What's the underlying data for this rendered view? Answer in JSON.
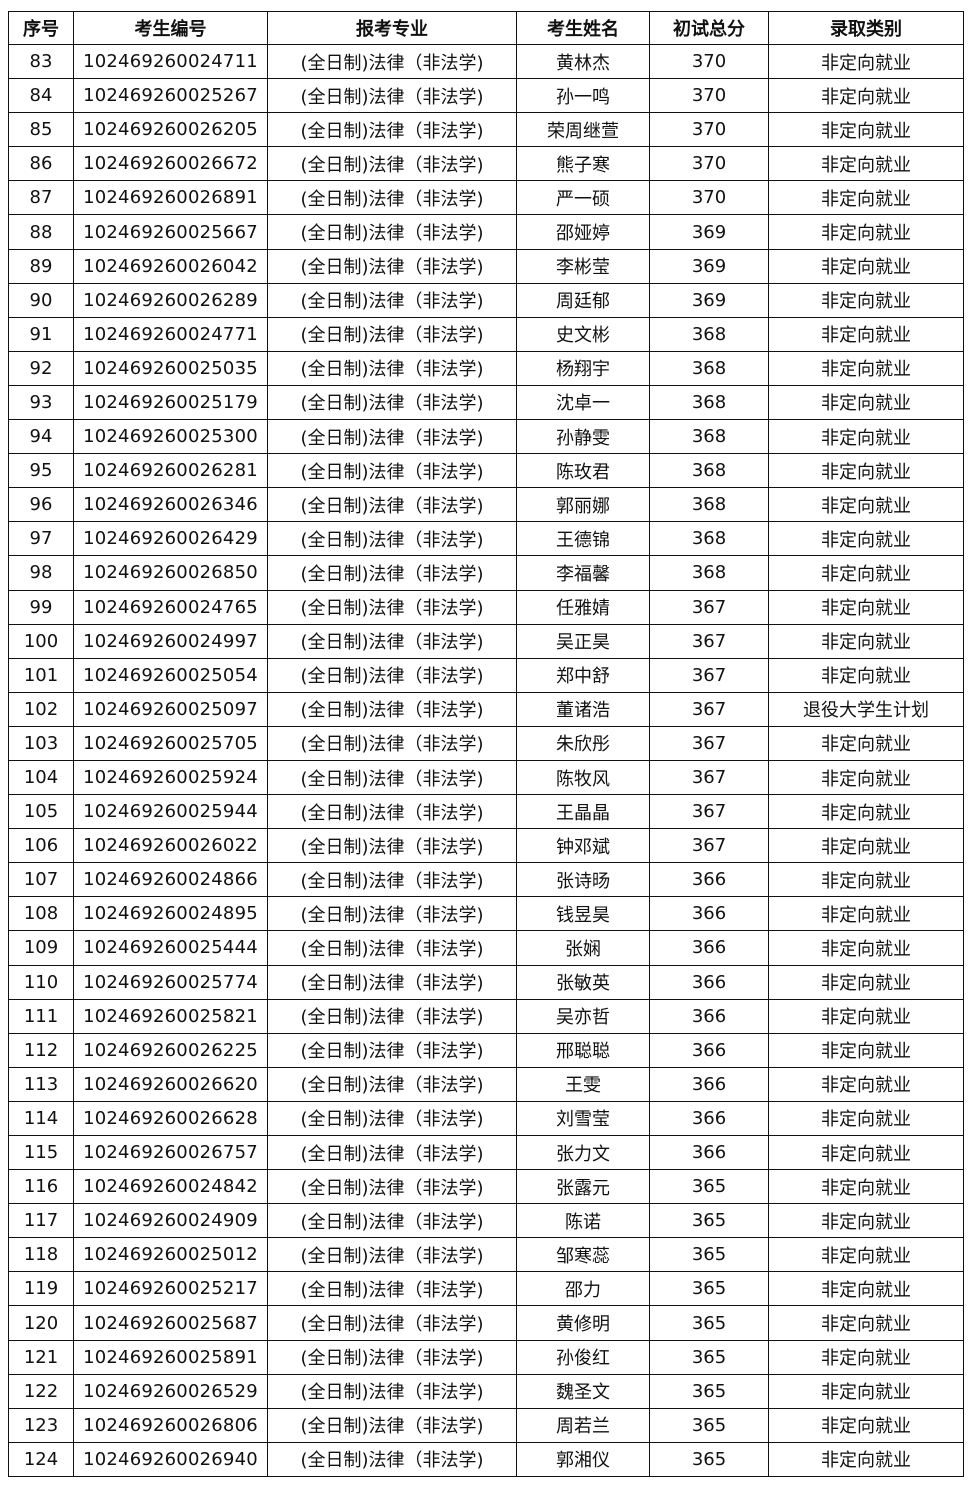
{
  "headers": [
    "序号",
    "考生编号",
    "报考专业",
    "考生姓名",
    "初试总分",
    "录取类别"
  ],
  "rows": [
    [
      "83",
      "102469260024711",
      "(全日制)法律（非法学)",
      "黄林杰",
      "370",
      "非定向就业"
    ],
    [
      "84",
      "102469260025267",
      "(全日制)法律（非法学)",
      "孙一鸣",
      "370",
      "非定向就业"
    ],
    [
      "85",
      "102469260026205",
      "(全日制)法律（非法学)",
      "荣周继萱",
      "370",
      "非定向就业"
    ],
    [
      "86",
      "102469260026672",
      "(全日制)法律（非法学)",
      "熊子寒",
      "370",
      "非定向就业"
    ],
    [
      "87",
      "102469260026891",
      "(全日制)法律（非法学)",
      "严一硕",
      "370",
      "非定向就业"
    ],
    [
      "88",
      "102469260025667",
      "(全日制)法律（非法学)",
      "邵娅婷",
      "369",
      "非定向就业"
    ],
    [
      "89",
      "102469260026042",
      "(全日制)法律（非法学)",
      "李彬莹",
      "369",
      "非定向就业"
    ],
    [
      "90",
      "102469260026289",
      "(全日制)法律（非法学)",
      "周廷郁",
      "369",
      "非定向就业"
    ],
    [
      "91",
      "102469260024771",
      "(全日制)法律（非法学)",
      "史文彬",
      "368",
      "非定向就业"
    ],
    [
      "92",
      "102469260025035",
      "(全日制)法律（非法学)",
      "杨翔宇",
      "368",
      "非定向就业"
    ],
    [
      "93",
      "102469260025179",
      "(全日制)法律（非法学)",
      "沈卓一",
      "368",
      "非定向就业"
    ],
    [
      "94",
      "102469260025300",
      "(全日制)法律（非法学)",
      "孙静雯",
      "368",
      "非定向就业"
    ],
    [
      "95",
      "102469260026281",
      "(全日制)法律（非法学)",
      "陈玫君",
      "368",
      "非定向就业"
    ],
    [
      "96",
      "102469260026346",
      "(全日制)法律（非法学)",
      "郭丽娜",
      "368",
      "非定向就业"
    ],
    [
      "97",
      "102469260026429",
      "(全日制)法律（非法学)",
      "王德锦",
      "368",
      "非定向就业"
    ],
    [
      "98",
      "102469260026850",
      "(全日制)法律（非法学)",
      "李福馨",
      "368",
      "非定向就业"
    ],
    [
      "99",
      "102469260024765",
      "(全日制)法律（非法学)",
      "任雅婧",
      "367",
      "非定向就业"
    ],
    [
      "100",
      "102469260024997",
      "(全日制)法律（非法学)",
      "吴正昊",
      "367",
      "非定向就业"
    ],
    [
      "101",
      "102469260025054",
      "(全日制)法律（非法学)",
      "郑中舒",
      "367",
      "非定向就业"
    ],
    [
      "102",
      "102469260025097",
      "(全日制)法律（非法学)",
      "董诸浩",
      "367",
      "退役大学生计划"
    ],
    [
      "103",
      "102469260025705",
      "(全日制)法律（非法学)",
      "朱欣彤",
      "367",
      "非定向就业"
    ],
    [
      "104",
      "102469260025924",
      "(全日制)法律（非法学)",
      "陈牧风",
      "367",
      "非定向就业"
    ],
    [
      "105",
      "102469260025944",
      "(全日制)法律（非法学)",
      "王晶晶",
      "367",
      "非定向就业"
    ],
    [
      "106",
      "102469260026022",
      "(全日制)法律（非法学)",
      "钟邓斌",
      "367",
      "非定向就业"
    ],
    [
      "107",
      "102469260024866",
      "(全日制)法律（非法学)",
      "张诗旸",
      "366",
      "非定向就业"
    ],
    [
      "108",
      "102469260024895",
      "(全日制)法律（非法学)",
      "钱昱昊",
      "366",
      "非定向就业"
    ],
    [
      "109",
      "102469260025444",
      "(全日制)法律（非法学)",
      "张娴",
      "366",
      "非定向就业"
    ],
    [
      "110",
      "102469260025774",
      "(全日制)法律（非法学)",
      "张敏英",
      "366",
      "非定向就业"
    ],
    [
      "111",
      "102469260025821",
      "(全日制)法律（非法学)",
      "吴亦哲",
      "366",
      "非定向就业"
    ],
    [
      "112",
      "102469260026225",
      "(全日制)法律（非法学)",
      "邢聪聪",
      "366",
      "非定向就业"
    ],
    [
      "113",
      "102469260026620",
      "(全日制)法律（非法学)",
      "王雯",
      "366",
      "非定向就业"
    ],
    [
      "114",
      "102469260026628",
      "(全日制)法律（非法学)",
      "刘雪莹",
      "366",
      "非定向就业"
    ],
    [
      "115",
      "102469260026757",
      "(全日制)法律（非法学)",
      "张力文",
      "366",
      "非定向就业"
    ],
    [
      "116",
      "102469260024842",
      "(全日制)法律（非法学)",
      "张露元",
      "365",
      "非定向就业"
    ],
    [
      "117",
      "102469260024909",
      "(全日制)法律（非法学)",
      "陈诺",
      "365",
      "非定向就业"
    ],
    [
      "118",
      "102469260025012",
      "(全日制)法律（非法学)",
      "邹寒蕊",
      "365",
      "非定向就业"
    ],
    [
      "119",
      "102469260025217",
      "(全日制)法律（非法学)",
      "邵力",
      "365",
      "非定向就业"
    ],
    [
      "120",
      "102469260025687",
      "(全日制)法律（非法学)",
      "黄修明",
      "365",
      "非定向就业"
    ],
    [
      "121",
      "102469260025891",
      "(全日制)法律（非法学)",
      "孙俊红",
      "365",
      "非定向就业"
    ],
    [
      "122",
      "102469260026529",
      "(全日制)法律（非法学)",
      "魏圣文",
      "365",
      "非定向就业"
    ],
    [
      "123",
      "102469260026806",
      "(全日制)法律（非法学)",
      "周若兰",
      "365",
      "非定向就业"
    ],
    [
      "124",
      "102469260026940",
      "(全日制)法律（非法学)",
      "郭湘仪",
      "365",
      "非定向就业"
    ]
  ]
}
